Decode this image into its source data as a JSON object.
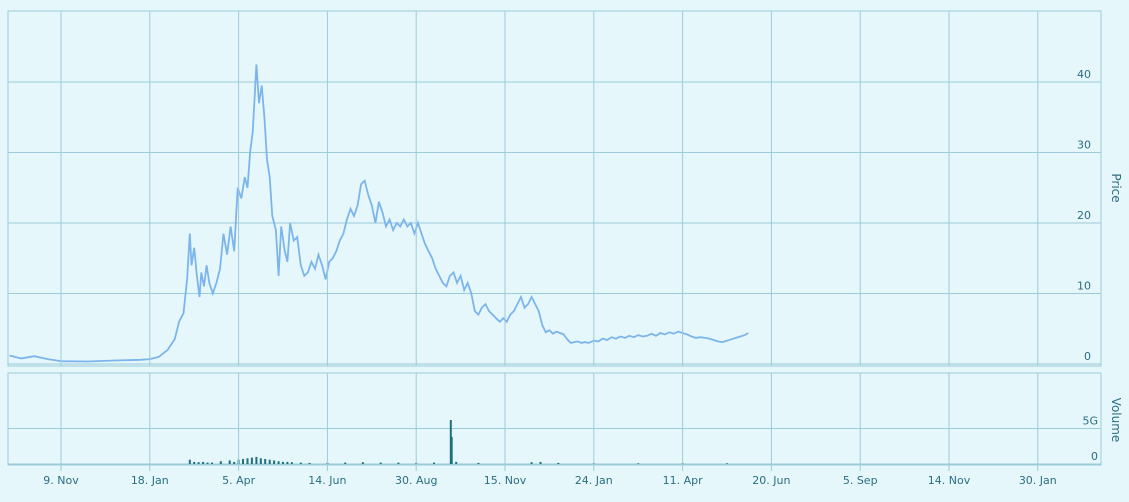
{
  "chart_data": [
    {
      "type": "line",
      "panel": "price",
      "ylabel": "Price",
      "ylim": [
        0,
        43
      ],
      "yticks": [
        0,
        10,
        20,
        30,
        40
      ],
      "grid": true,
      "x_ticks": [
        "9. Nov",
        "18. Jan",
        "5. Apr",
        "14. Jun",
        "30. Aug",
        "15. Nov",
        "24. Jan",
        "11. Apr",
        "20. Jun",
        "5. Sep",
        "14. Nov",
        "30. Jan"
      ],
      "series": [
        {
          "color": "#7cb5ec",
          "points": [
            [
              -0.58,
              1.2
            ],
            [
              -0.45,
              0.8
            ],
            [
              -0.3,
              1.1
            ],
            [
              -0.15,
              0.7
            ],
            [
              0,
              0.4
            ],
            [
              0.3,
              0.35
            ],
            [
              0.6,
              0.5
            ],
            [
              0.9,
              0.6
            ],
            [
              1.0,
              0.7
            ],
            [
              1.1,
              1.0
            ],
            [
              1.2,
              2.0
            ],
            [
              1.28,
              3.5
            ],
            [
              1.33,
              6.0
            ],
            [
              1.38,
              7.2
            ],
            [
              1.42,
              12.0
            ],
            [
              1.45,
              18.5
            ],
            [
              1.47,
              14.0
            ],
            [
              1.5,
              16.5
            ],
            [
              1.53,
              12.5
            ],
            [
              1.56,
              9.5
            ],
            [
              1.58,
              13.0
            ],
            [
              1.61,
              11.0
            ],
            [
              1.64,
              14.0
            ],
            [
              1.67,
              11.5
            ],
            [
              1.71,
              10.0
            ],
            [
              1.75,
              11.5
            ],
            [
              1.79,
              13.5
            ],
            [
              1.83,
              18.5
            ],
            [
              1.87,
              15.5
            ],
            [
              1.91,
              19.5
            ],
            [
              1.95,
              16.0
            ],
            [
              1.99,
              25.0
            ],
            [
              2.03,
              23.5
            ],
            [
              2.07,
              26.5
            ],
            [
              2.1,
              25.0
            ],
            [
              2.13,
              30.0
            ],
            [
              2.16,
              33.0
            ],
            [
              2.2,
              42.5
            ],
            [
              2.23,
              37.0
            ],
            [
              2.26,
              39.5
            ],
            [
              2.29,
              35.0
            ],
            [
              2.32,
              29.0
            ],
            [
              2.35,
              26.5
            ],
            [
              2.38,
              21.0
            ],
            [
              2.42,
              19.0
            ],
            [
              2.45,
              12.5
            ],
            [
              2.48,
              19.5
            ],
            [
              2.52,
              16.0
            ],
            [
              2.55,
              14.5
            ],
            [
              2.58,
              20.0
            ],
            [
              2.62,
              17.5
            ],
            [
              2.66,
              18.0
            ],
            [
              2.7,
              14.0
            ],
            [
              2.74,
              12.5
            ],
            [
              2.78,
              13.0
            ],
            [
              2.82,
              14.5
            ],
            [
              2.86,
              13.5
            ],
            [
              2.9,
              15.5
            ],
            [
              2.94,
              14.0
            ],
            [
              2.98,
              12.0
            ],
            [
              3.02,
              14.5
            ],
            [
              3.06,
              15.0
            ],
            [
              3.1,
              16.0
            ],
            [
              3.14,
              17.5
            ],
            [
              3.18,
              18.5
            ],
            [
              3.22,
              20.5
            ],
            [
              3.26,
              22.0
            ],
            [
              3.3,
              21.0
            ],
            [
              3.34,
              22.5
            ],
            [
              3.38,
              25.5
            ],
            [
              3.42,
              26.0
            ],
            [
              3.46,
              24.0
            ],
            [
              3.5,
              22.5
            ],
            [
              3.54,
              20.0
            ],
            [
              3.58,
              23.0
            ],
            [
              3.62,
              21.5
            ],
            [
              3.66,
              19.5
            ],
            [
              3.7,
              20.5
            ],
            [
              3.74,
              19.0
            ],
            [
              3.78,
              20.0
            ],
            [
              3.82,
              19.5
            ],
            [
              3.86,
              20.5
            ],
            [
              3.9,
              19.5
            ],
            [
              3.94,
              20.0
            ],
            [
              3.98,
              18.5
            ],
            [
              4.02,
              20.0
            ],
            [
              4.06,
              18.5
            ],
            [
              4.1,
              17.0
            ],
            [
              4.14,
              16.0
            ],
            [
              4.18,
              15.0
            ],
            [
              4.22,
              13.5
            ],
            [
              4.26,
              12.5
            ],
            [
              4.3,
              11.5
            ],
            [
              4.34,
              11.0
            ],
            [
              4.38,
              12.5
            ],
            [
              4.42,
              13.0
            ],
            [
              4.46,
              11.5
            ],
            [
              4.5,
              12.5
            ],
            [
              4.54,
              10.5
            ],
            [
              4.58,
              11.5
            ],
            [
              4.62,
              10.0
            ],
            [
              4.66,
              7.5
            ],
            [
              4.7,
              7.0
            ],
            [
              4.74,
              8.0
            ],
            [
              4.78,
              8.5
            ],
            [
              4.82,
              7.5
            ],
            [
              4.86,
              7.0
            ],
            [
              4.9,
              6.5
            ],
            [
              4.94,
              6.0
            ],
            [
              4.98,
              6.5
            ],
            [
              5.02,
              6.0
            ],
            [
              5.06,
              7.0
            ],
            [
              5.1,
              7.5
            ],
            [
              5.14,
              8.5
            ],
            [
              5.18,
              9.5
            ],
            [
              5.22,
              8.0
            ],
            [
              5.26,
              8.5
            ],
            [
              5.3,
              9.5
            ],
            [
              5.34,
              8.5
            ],
            [
              5.38,
              7.5
            ],
            [
              5.42,
              5.5
            ],
            [
              5.46,
              4.5
            ],
            [
              5.5,
              4.8
            ],
            [
              5.54,
              4.3
            ],
            [
              5.58,
              4.6
            ],
            [
              5.62,
              4.4
            ],
            [
              5.66,
              4.2
            ],
            [
              5.7,
              3.5
            ],
            [
              5.74,
              3.0
            ],
            [
              5.78,
              3.1
            ],
            [
              5.82,
              3.2
            ],
            [
              5.86,
              3.0
            ],
            [
              5.9,
              3.1
            ],
            [
              5.94,
              3.0
            ],
            [
              6.0,
              3.3
            ],
            [
              6.05,
              3.2
            ],
            [
              6.1,
              3.6
            ],
            [
              6.15,
              3.4
            ],
            [
              6.2,
              3.8
            ],
            [
              6.25,
              3.6
            ],
            [
              6.3,
              3.9
            ],
            [
              6.35,
              3.7
            ],
            [
              6.4,
              4.0
            ],
            [
              6.45,
              3.8
            ],
            [
              6.5,
              4.1
            ],
            [
              6.55,
              3.9
            ],
            [
              6.6,
              4.0
            ],
            [
              6.65,
              4.3
            ],
            [
              6.7,
              4.0
            ],
            [
              6.75,
              4.4
            ],
            [
              6.8,
              4.2
            ],
            [
              6.85,
              4.5
            ],
            [
              6.9,
              4.3
            ],
            [
              6.95,
              4.6
            ],
            [
              7.0,
              4.4
            ],
            [
              7.05,
              4.2
            ],
            [
              7.1,
              3.9
            ],
            [
              7.15,
              3.7
            ],
            [
              7.2,
              3.8
            ],
            [
              7.25,
              3.7
            ],
            [
              7.3,
              3.6
            ],
            [
              7.35,
              3.4
            ],
            [
              7.4,
              3.2
            ],
            [
              7.45,
              3.1
            ],
            [
              7.5,
              3.3
            ],
            [
              7.55,
              3.5
            ],
            [
              7.6,
              3.7
            ],
            [
              7.65,
              3.9
            ],
            [
              7.7,
              4.1
            ],
            [
              7.74,
              4.4
            ]
          ]
        }
      ]
    },
    {
      "type": "bar",
      "panel": "volume",
      "ylabel": "Volume",
      "ylim": [
        0,
        7.5
      ],
      "yticks": [
        0,
        5
      ],
      "ytick_labels": [
        "0",
        "5G"
      ],
      "grid": true,
      "series": [
        {
          "color": "#1f6f7f",
          "points": [
            [
              1.45,
              0.6
            ],
            [
              1.5,
              0.3
            ],
            [
              1.55,
              0.25
            ],
            [
              1.6,
              0.3
            ],
            [
              1.65,
              0.2
            ],
            [
              1.7,
              0.2
            ],
            [
              1.8,
              0.4
            ],
            [
              1.9,
              0.5
            ],
            [
              1.95,
              0.3
            ],
            [
              2.0,
              0.6
            ],
            [
              2.05,
              0.7
            ],
            [
              2.1,
              0.8
            ],
            [
              2.15,
              0.9
            ],
            [
              2.2,
              1.0
            ],
            [
              2.25,
              0.8
            ],
            [
              2.3,
              0.7
            ],
            [
              2.35,
              0.6
            ],
            [
              2.4,
              0.5
            ],
            [
              2.45,
              0.4
            ],
            [
              2.5,
              0.3
            ],
            [
              2.55,
              0.3
            ],
            [
              2.6,
              0.25
            ],
            [
              2.7,
              0.2
            ],
            [
              2.8,
              0.15
            ],
            [
              3.0,
              0.15
            ],
            [
              3.2,
              0.2
            ],
            [
              3.4,
              0.25
            ],
            [
              3.6,
              0.2
            ],
            [
              3.8,
              0.2
            ],
            [
              4.0,
              0.15
            ],
            [
              4.2,
              0.2
            ],
            [
              4.39,
              6.2
            ],
            [
              4.4,
              3.8
            ],
            [
              4.45,
              0.3
            ],
            [
              4.7,
              0.15
            ],
            [
              5.3,
              0.25
            ],
            [
              5.4,
              0.3
            ],
            [
              5.6,
              0.15
            ],
            [
              6.0,
              0.1
            ],
            [
              6.5,
              0.1
            ],
            [
              7.0,
              0.1
            ],
            [
              7.5,
              0.1
            ]
          ]
        }
      ]
    }
  ]
}
